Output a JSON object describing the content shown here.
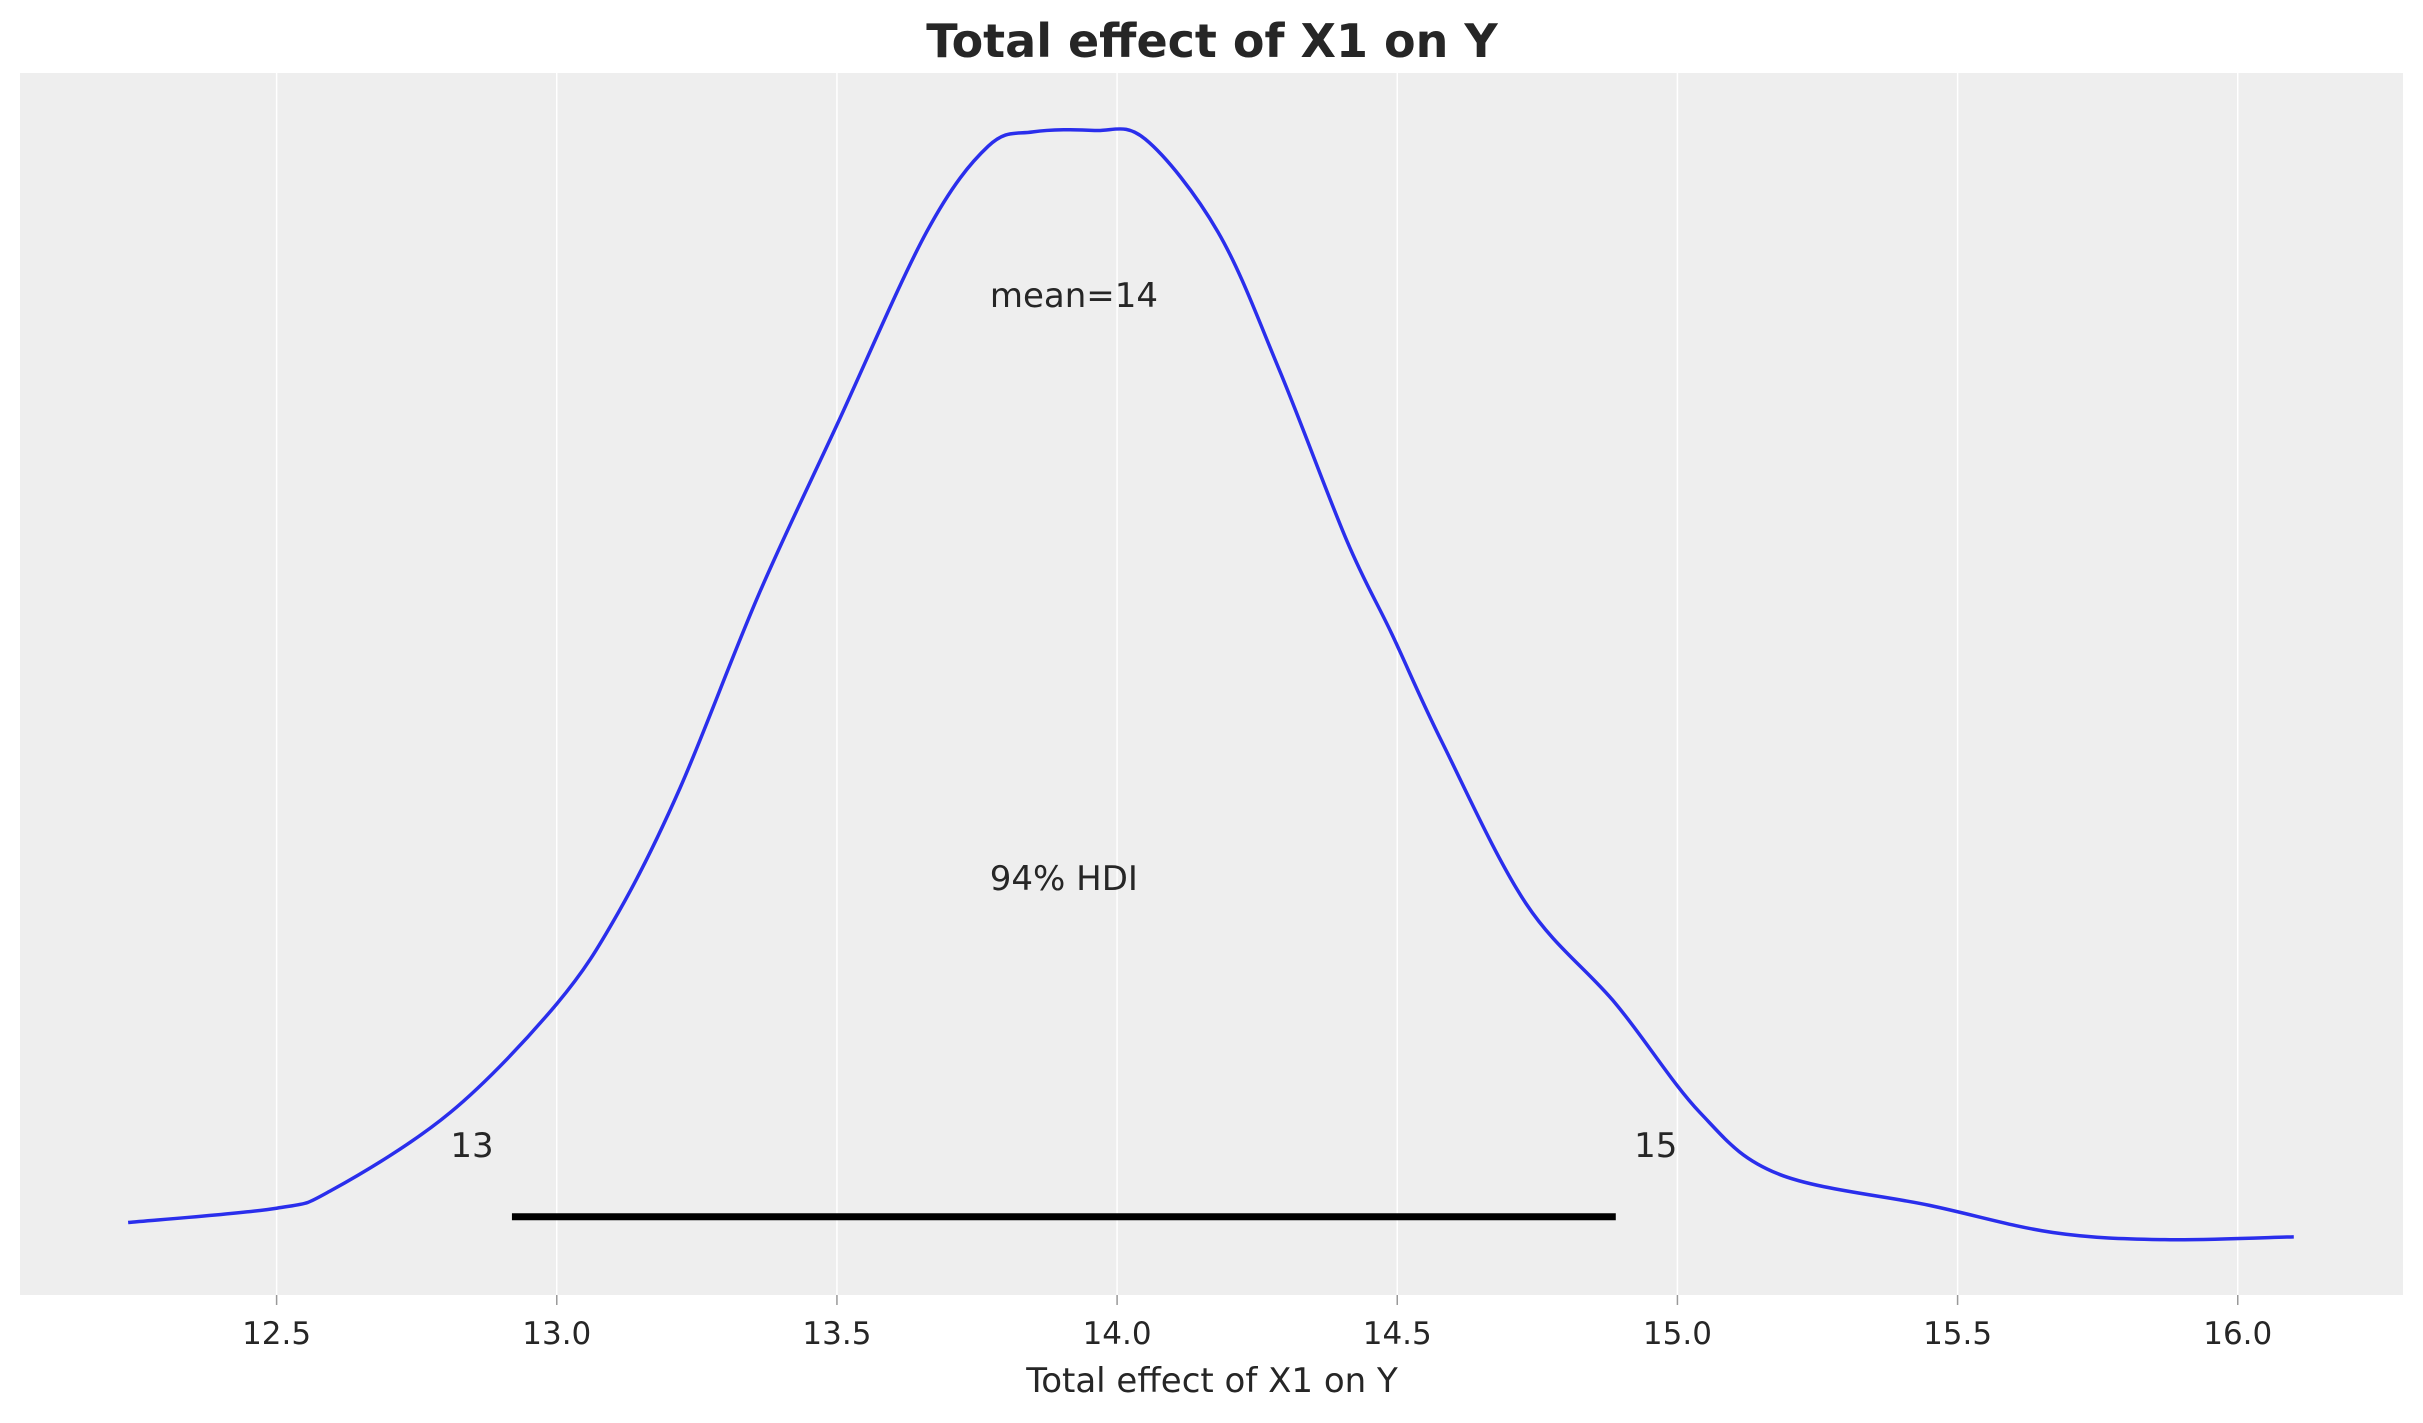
{
  "chart_data": {
    "type": "line",
    "title": "Total effect of X1 on Y",
    "xlabel": "Total effect of X1 on Y",
    "ylabel": "",
    "xlim": [
      12.18,
      16.42
    ],
    "xticks": [
      "12.5",
      "13.0",
      "13.5",
      "14.0",
      "14.5",
      "15.0",
      "15.5",
      "16.0"
    ],
    "grid": true,
    "y_axis_visible": false,
    "background": "#eeeeee",
    "series": [
      {
        "color": "#2a2eec",
        "x": [
          12.235,
          12.5,
          12.6,
          12.81,
          13.0,
          13.11,
          13.22,
          13.36,
          13.5,
          13.66,
          13.77,
          13.85,
          13.96,
          14.05,
          14.18,
          14.29,
          14.41,
          14.49,
          14.58,
          14.73,
          14.89,
          15.04,
          15.18,
          15.45,
          15.67,
          15.87,
          16.1
        ],
        "y": [
          0.015,
          0.025,
          0.038,
          0.092,
          0.168,
          0.232,
          0.319,
          0.454,
          0.573,
          0.708,
          0.768,
          0.778,
          0.779,
          0.773,
          0.708,
          0.611,
          0.492,
          0.427,
          0.351,
          0.238,
          0.168,
          0.092,
          0.049,
          0.027,
          0.008,
          0.003,
          0.005
        ]
      }
    ],
    "hdi": {
      "low": 12.92,
      "high": 14.89,
      "label": "94% HDI",
      "low_label": "13",
      "high_label": "15",
      "color": "#000000"
    },
    "mean": {
      "value": 14,
      "label": "mean=14"
    }
  }
}
